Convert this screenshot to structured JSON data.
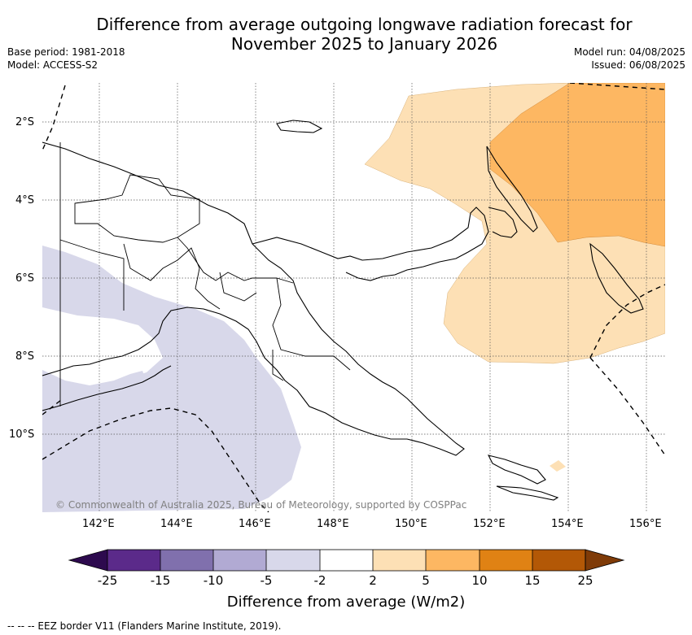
{
  "title": {
    "line1": "Difference from average outgoing longwave radiation forecast for",
    "line2": "November 2025 to January 2026"
  },
  "meta_left": {
    "base_period": "Base period: 1981-2018",
    "model": "Model: ACCESS-S2"
  },
  "meta_right": {
    "model_run": "Model run: 04/08/2025",
    "issued": "Issued: 06/08/2025"
  },
  "lat_ticks": [
    "2°S",
    "4°S",
    "6°S",
    "8°S",
    "10°S"
  ],
  "lon_ticks": [
    "142°E",
    "144°E",
    "146°E",
    "148°E",
    "150°E",
    "152°E",
    "154°E",
    "156°E"
  ],
  "copyright": "© Commonwealth of Australia 2025, Bureau of Meteorology, supported by COSPPac",
  "colorbar": {
    "label": "Difference from average (W/m2)",
    "ticks": [
      "-25",
      "-15",
      "-10",
      "-5",
      "-2",
      "2",
      "5",
      "10",
      "15",
      "25"
    ],
    "colors": {
      "under": "#2d0a4e",
      "c1": "#5b2a8a",
      "c2": "#8070ad",
      "c3": "#b1aad3",
      "c4": "#d8d8ea",
      "c5": "#ffffff",
      "c6": "#fde0b5",
      "c7": "#fdb762",
      "c8": "#e08214",
      "c9": "#b35806",
      "over": "#7f3b08"
    }
  },
  "eez_note": "--  --  -- EEZ border V11 (Flanders Marine Institute, 2019)."
}
